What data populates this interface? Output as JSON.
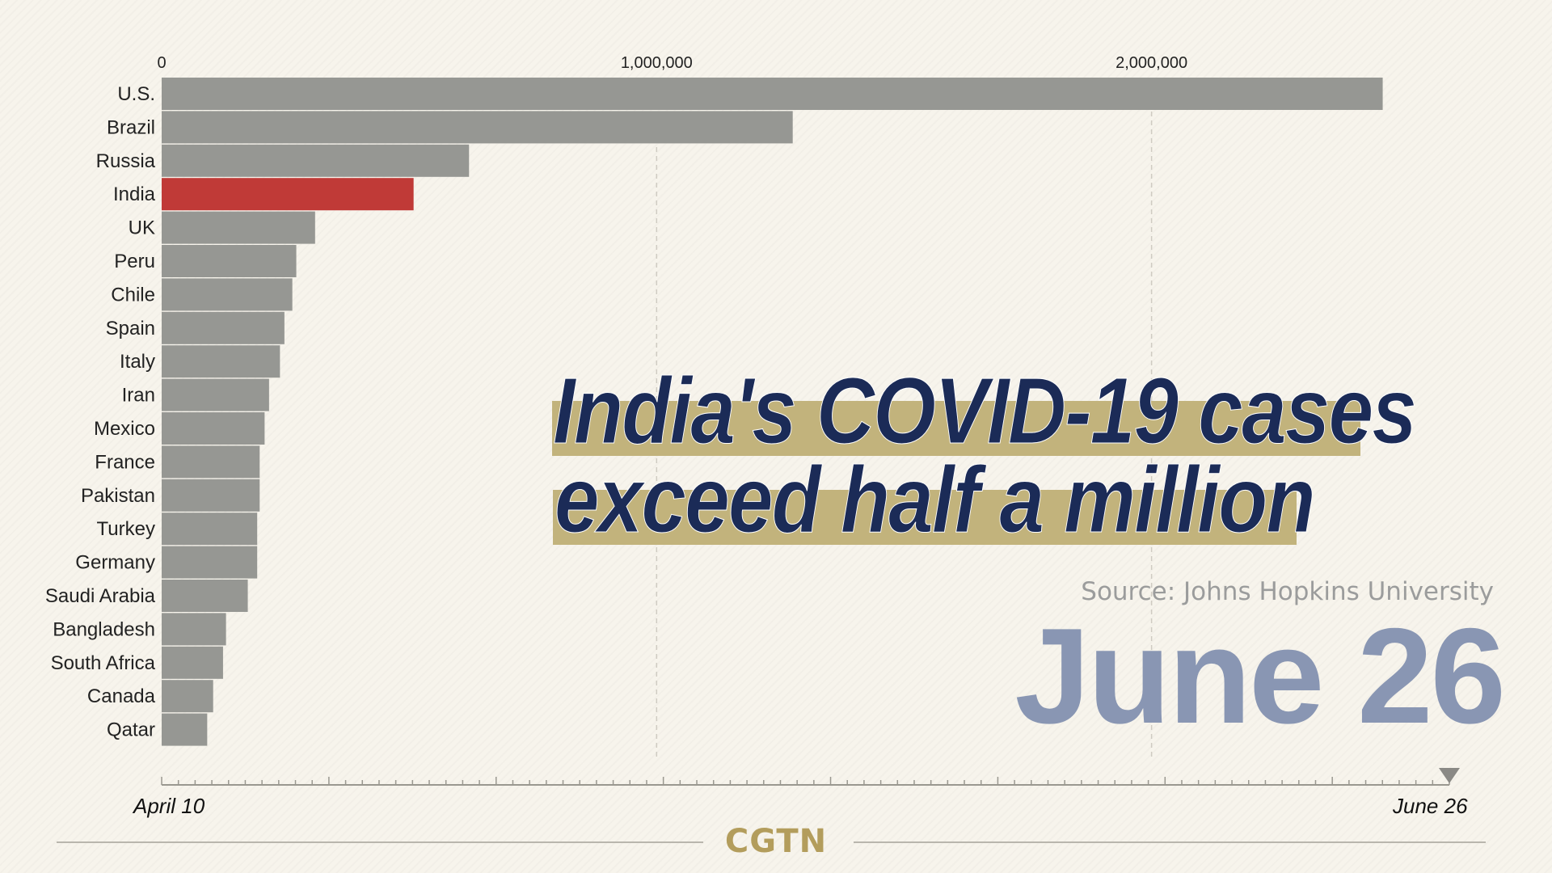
{
  "chart_data": {
    "type": "bar",
    "orientation": "horizontal",
    "categories": [
      "U.S.",
      "Brazil",
      "Russia",
      "India",
      "UK",
      "Peru",
      "Chile",
      "Spain",
      "Italy",
      "Iran",
      "Mexico",
      "France",
      "Pakistan",
      "Turkey",
      "Germany",
      "Saudi Arabia",
      "Bangladesh",
      "South Africa",
      "Canada",
      "Qatar"
    ],
    "values": [
      2467000,
      1275000,
      621000,
      509000,
      310000,
      272000,
      264000,
      248000,
      239000,
      217000,
      208000,
      198000,
      198000,
      193000,
      193000,
      174000,
      130000,
      124000,
      104000,
      92000
    ],
    "highlight": "India",
    "highlight_color": "#c03a37",
    "bar_color": "#969793",
    "xlim": [
      0,
      2600000
    ],
    "x_ticks": [
      0,
      1000000,
      2000000
    ],
    "x_tick_labels": [
      "0",
      "1,000,000",
      "2,000,000"
    ],
    "grid": "vertical dashed",
    "title": "",
    "xlabel": "",
    "ylabel": ""
  },
  "headline": {
    "line1": "India's COVID-19 cases",
    "line2": "exceed half a million"
  },
  "source": "Source: Johns Hopkins University",
  "current_date": "June 26",
  "timeline": {
    "start_label": "April 10",
    "end_label": "June 26",
    "progress": 1.0
  },
  "brand": "CGTN",
  "colors": {
    "background": "#f7f4ec",
    "headline_text": "#1b2b57",
    "headline_band": "#c2b37c",
    "date_text": "#8996b3",
    "brand": "#b39d5c"
  }
}
